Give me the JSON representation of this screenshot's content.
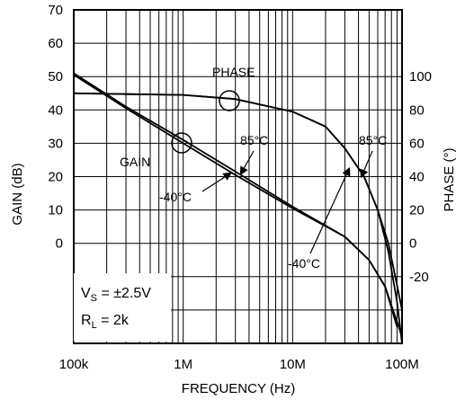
{
  "chart_data": {
    "type": "line",
    "title": "",
    "xlabel": "FREQUENCY (Hz)",
    "ylabel_left": "GAIN (dB)",
    "ylabel_right": "PHASE (°)",
    "x_scale": "log",
    "xlim": [
      100000,
      100000000
    ],
    "ylim_left": [
      -30,
      70
    ],
    "ylim_right": [
      -60,
      140
    ],
    "grid": true,
    "x_ticks": [
      100000,
      1000000,
      10000000,
      100000000
    ],
    "x_tick_labels": [
      "100k",
      "1M",
      "10M",
      "100M"
    ],
    "y_left_ticks": [
      0,
      10,
      20,
      30,
      40,
      50,
      60,
      70
    ],
    "y_left_tick_labels": [
      "0",
      "10",
      "20",
      "30",
      "40",
      "50",
      "60",
      "70"
    ],
    "y_right_ticks": [
      -20,
      0,
      20,
      40,
      60,
      80,
      100
    ],
    "y_right_tick_labels": [
      "-20",
      "0",
      "20",
      "40",
      "60",
      "80",
      "100"
    ],
    "series": [
      {
        "axis": "left",
        "points": [
          [
            100000,
            51
          ],
          [
            300000,
            41
          ],
          [
            1000000,
            31
          ],
          [
            3000000,
            21.5
          ],
          [
            10000000,
            11
          ],
          [
            30000000,
            2
          ],
          [
            50000000,
            -5
          ],
          [
            70000000,
            -13
          ],
          [
            90000000,
            -25
          ]
        ]
      },
      {
        "axis": "left",
        "points": [
          [
            100000,
            50.5
          ],
          [
            300000,
            40.5
          ],
          [
            1000000,
            30
          ],
          [
            3000000,
            20.5
          ],
          [
            10000000,
            10.5
          ],
          [
            30000000,
            2
          ],
          [
            50000000,
            -5
          ],
          [
            70000000,
            -13
          ],
          [
            100000000,
            -28
          ]
        ]
      },
      {
        "axis": "right",
        "points": [
          [
            100000,
            90
          ],
          [
            300000,
            89.5
          ],
          [
            1000000,
            89
          ],
          [
            3000000,
            86.5
          ],
          [
            10000000,
            79
          ],
          [
            20000000,
            70
          ],
          [
            30000000,
            57
          ],
          [
            45000000,
            40
          ],
          [
            60000000,
            20
          ],
          [
            75000000,
            -5
          ],
          [
            90000000,
            -35
          ],
          [
            100000000,
            -60
          ]
        ]
      },
      {
        "axis": "right",
        "points": [
          [
            100000,
            90
          ],
          [
            300000,
            89.5
          ],
          [
            1000000,
            89
          ],
          [
            3000000,
            86.5
          ],
          [
            10000000,
            79
          ],
          [
            20000000,
            70
          ],
          [
            30000000,
            57
          ],
          [
            45000000,
            40
          ],
          [
            60000000,
            20
          ],
          [
            75000000,
            0
          ],
          [
            90000000,
            -25
          ],
          [
            100000000,
            -40
          ]
        ]
      }
    ],
    "annotations": {
      "phase": "PHASE",
      "gain": "GAIN",
      "hot_left": "85°C",
      "cold_left": "-40°C",
      "hot_right": "85°C",
      "cold_right": "-40°C",
      "vs": "V",
      "vs_sub": "S",
      "vs_value": " = ±2.5V",
      "rl": "R",
      "rl_sub": "L",
      "rl_value": " = 2k"
    }
  }
}
